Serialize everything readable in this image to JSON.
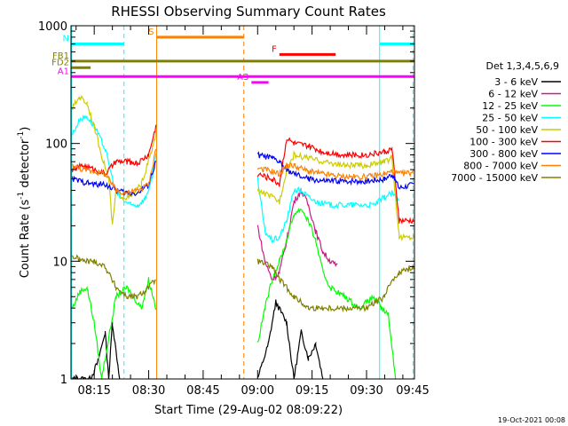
{
  "chart_data": {
    "type": "line",
    "title": "RHESSI Observing Summary Count Rates",
    "xlabel": "Start Time (29-Aug-02 08:09:22)",
    "ylabel_main": "Count Rate (s",
    "ylabel_exp1": "-1",
    "ylabel_mid": " detector",
    "ylabel_exp2": "-1",
    "ylabel_end": ")",
    "y_scale": "log",
    "ylim": [
      1,
      1000
    ],
    "xlim_minutes": [
      8.6,
      103.2
    ],
    "x_ticks": [
      {
        "minute": 15,
        "label": "08:15"
      },
      {
        "minute": 30,
        "label": "08:30"
      },
      {
        "minute": 45,
        "label": "08:45"
      },
      {
        "minute": 60,
        "label": "09:00"
      },
      {
        "minute": 75,
        "label": "09:15"
      },
      {
        "minute": 90,
        "label": "09:30"
      },
      {
        "minute": 105,
        "label": "09:45"
      }
    ],
    "y_ticks": [
      {
        "value": 1,
        "label": "1"
      },
      {
        "value": 10,
        "label": "10"
      },
      {
        "value": 100,
        "label": "100"
      },
      {
        "value": 1000,
        "label": "1000"
      }
    ],
    "legend_title": "Det 1,3,4,5,6,9",
    "footer_date": "19-Oct-2021 00:08",
    "series": [
      {
        "name": "3 - 6 keV",
        "color": "#000000",
        "points": [
          [
            9,
            1
          ],
          [
            14,
            1
          ],
          [
            16,
            1.4
          ],
          [
            18,
            2.5
          ],
          [
            19,
            1
          ],
          [
            20,
            3
          ],
          [
            22,
            1
          ],
          [
            60,
            1
          ],
          [
            63,
            2
          ],
          [
            65,
            4.5
          ],
          [
            68,
            3
          ],
          [
            70,
            1
          ],
          [
            72,
            2.5
          ],
          [
            74,
            1.5
          ],
          [
            76,
            2
          ],
          [
            78,
            1
          ]
        ]
      },
      {
        "name": "6 - 12 keV",
        "color": "#d01888",
        "points": [
          [
            60,
            20
          ],
          [
            62,
            10
          ],
          [
            64,
            7
          ],
          [
            66,
            8
          ],
          [
            68,
            15
          ],
          [
            70,
            32
          ],
          [
            72,
            40
          ],
          [
            74,
            30
          ],
          [
            76,
            18
          ],
          [
            78,
            12
          ],
          [
            80,
            10
          ],
          [
            82,
            9
          ]
        ]
      },
      {
        "name": "12 - 25 keV",
        "color": "#00ff00",
        "points": [
          [
            9,
            4
          ],
          [
            11,
            5.5
          ],
          [
            13,
            6
          ],
          [
            15,
            3
          ],
          [
            17,
            1
          ],
          [
            21,
            5
          ],
          [
            24,
            6
          ],
          [
            28,
            4
          ],
          [
            30,
            7
          ],
          [
            32,
            4
          ],
          [
            60,
            2
          ],
          [
            62,
            4
          ],
          [
            64,
            7
          ],
          [
            66,
            10
          ],
          [
            68,
            15
          ],
          [
            70,
            25
          ],
          [
            72,
            28
          ],
          [
            74,
            22
          ],
          [
            76,
            15
          ],
          [
            78,
            8
          ],
          [
            80,
            6
          ],
          [
            84,
            5
          ],
          [
            88,
            4
          ],
          [
            92,
            5
          ],
          [
            94,
            4
          ],
          [
            96,
            3.5
          ],
          [
            98,
            1
          ]
        ]
      },
      {
        "name": "25 - 50 keV",
        "color": "#00ffff",
        "points": [
          [
            9,
            120
          ],
          [
            11,
            160
          ],
          [
            13,
            170
          ],
          [
            15,
            140
          ],
          [
            18,
            90
          ],
          [
            21,
            38
          ],
          [
            23,
            33
          ],
          [
            25,
            30
          ],
          [
            27,
            30
          ],
          [
            29,
            34
          ],
          [
            31,
            50
          ],
          [
            32,
            80
          ],
          [
            60,
            50
          ],
          [
            62,
            18
          ],
          [
            64,
            15
          ],
          [
            66,
            16
          ],
          [
            68,
            22
          ],
          [
            70,
            40
          ],
          [
            72,
            40
          ],
          [
            74,
            35
          ],
          [
            76,
            32
          ],
          [
            80,
            30
          ],
          [
            86,
            30
          ],
          [
            92,
            30
          ],
          [
            95,
            35
          ],
          [
            97,
            38
          ],
          [
            99,
            32
          ]
        ]
      },
      {
        "name": "50 - 100 keV",
        "color": "#cccc00",
        "points": [
          [
            9,
            200
          ],
          [
            11,
            250
          ],
          [
            13,
            220
          ],
          [
            15,
            140
          ],
          [
            17,
            80
          ],
          [
            19,
            50
          ],
          [
            20,
            20
          ],
          [
            21,
            40
          ],
          [
            23,
            35
          ],
          [
            25,
            35
          ],
          [
            28,
            45
          ],
          [
            31,
            90
          ],
          [
            32,
            120
          ],
          [
            60,
            40
          ],
          [
            64,
            35
          ],
          [
            66,
            32
          ],
          [
            68,
            60
          ],
          [
            70,
            80
          ],
          [
            74,
            75
          ],
          [
            78,
            70
          ],
          [
            84,
            65
          ],
          [
            90,
            65
          ],
          [
            95,
            70
          ],
          [
            97,
            75
          ],
          [
            99,
            16
          ],
          [
            103,
            16
          ]
        ]
      },
      {
        "name": "100 - 300 keV",
        "color": "#ff0000",
        "points": [
          [
            9,
            60
          ],
          [
            12,
            65
          ],
          [
            15,
            60
          ],
          [
            18,
            55
          ],
          [
            21,
            70
          ],
          [
            24,
            70
          ],
          [
            27,
            68
          ],
          [
            30,
            80
          ],
          [
            32,
            140
          ],
          [
            60,
            55
          ],
          [
            64,
            50
          ],
          [
            66,
            45
          ],
          [
            68,
            110
          ],
          [
            70,
            100
          ],
          [
            74,
            95
          ],
          [
            78,
            85
          ],
          [
            84,
            80
          ],
          [
            90,
            80
          ],
          [
            95,
            85
          ],
          [
            97,
            90
          ],
          [
            99,
            22
          ],
          [
            103,
            22
          ]
        ]
      },
      {
        "name": "300 - 800 keV",
        "color": "#0000ff",
        "points": [
          [
            9,
            50
          ],
          [
            12,
            47
          ],
          [
            15,
            45
          ],
          [
            18,
            45
          ],
          [
            21,
            40
          ],
          [
            24,
            38
          ],
          [
            27,
            38
          ],
          [
            30,
            45
          ],
          [
            32,
            70
          ],
          [
            60,
            80
          ],
          [
            64,
            75
          ],
          [
            66,
            70
          ],
          [
            68,
            60
          ],
          [
            70,
            55
          ],
          [
            74,
            50
          ],
          [
            78,
            48
          ],
          [
            84,
            48
          ],
          [
            90,
            48
          ],
          [
            95,
            50
          ],
          [
            97,
            55
          ],
          [
            99,
            42
          ],
          [
            103,
            45
          ]
        ]
      },
      {
        "name": "800 - 7000 keV",
        "color": "#ff8000",
        "points": [
          [
            9,
            65
          ],
          [
            12,
            60
          ],
          [
            15,
            58
          ],
          [
            18,
            55
          ],
          [
            21,
            40
          ],
          [
            24,
            38
          ],
          [
            27,
            40
          ],
          [
            30,
            45
          ],
          [
            32,
            90
          ],
          [
            60,
            62
          ],
          [
            64,
            58
          ],
          [
            66,
            55
          ],
          [
            68,
            65
          ],
          [
            70,
            65
          ],
          [
            74,
            58
          ],
          [
            78,
            55
          ],
          [
            84,
            52
          ],
          [
            90,
            52
          ],
          [
            95,
            55
          ],
          [
            97,
            58
          ],
          [
            99,
            55
          ],
          [
            103,
            57
          ]
        ]
      },
      {
        "name": "7000 - 15000 keV",
        "color": "#808000",
        "points": [
          [
            9,
            11
          ],
          [
            12,
            10
          ],
          [
            15,
            10
          ],
          [
            18,
            9
          ],
          [
            21,
            6
          ],
          [
            24,
            5
          ],
          [
            27,
            5
          ],
          [
            30,
            6
          ],
          [
            32,
            7
          ],
          [
            60,
            10
          ],
          [
            64,
            9
          ],
          [
            66,
            7
          ],
          [
            68,
            6
          ],
          [
            70,
            5
          ],
          [
            74,
            4
          ],
          [
            78,
            4
          ],
          [
            84,
            4
          ],
          [
            90,
            4
          ],
          [
            95,
            5
          ],
          [
            97,
            7
          ],
          [
            99,
            8
          ],
          [
            103,
            9
          ]
        ]
      }
    ],
    "vertical_markers": [
      {
        "minute": 8.8,
        "color": "#00ffff",
        "style": "solid"
      },
      {
        "minute": 23.2,
        "color": "#00ffff",
        "style": "dashed"
      },
      {
        "minute": 32.2,
        "color": "#ff8000",
        "style": "solid"
      },
      {
        "minute": 56.2,
        "color": "#ff8000",
        "style": "dashed"
      },
      {
        "minute": 93.6,
        "color": "#00ffff",
        "style": "solid"
      },
      {
        "minute": 102.8,
        "color": "#00ffff",
        "style": "dashed"
      }
    ],
    "flag_bars": [
      {
        "label": "N",
        "color": "#00ffff",
        "start": 8.6,
        "end": 23.2,
        "value": 700
      },
      {
        "label": "",
        "color": "#00ffff",
        "start": 93.6,
        "end": 103.2,
        "value": 700
      },
      {
        "label": "S",
        "color": "#ff8000",
        "start": 32.2,
        "end": 56.2,
        "value": 800
      },
      {
        "label": "F",
        "color": "#ff0000",
        "start": 66,
        "end": 81.5,
        "value": 570
      },
      {
        "label": "FB1",
        "color": "#808000",
        "start": 8.6,
        "end": 103.2,
        "value": 500
      },
      {
        "label": "FD2",
        "color": "#808000",
        "start": 8.6,
        "end": 14,
        "value": 440
      },
      {
        "label": "A1",
        "color": "#ff00ff",
        "start": 8.6,
        "end": 103.2,
        "value": 370
      },
      {
        "label": "A3",
        "color": "#ff00ff",
        "start": 58.3,
        "end": 63,
        "value": 330
      }
    ]
  }
}
